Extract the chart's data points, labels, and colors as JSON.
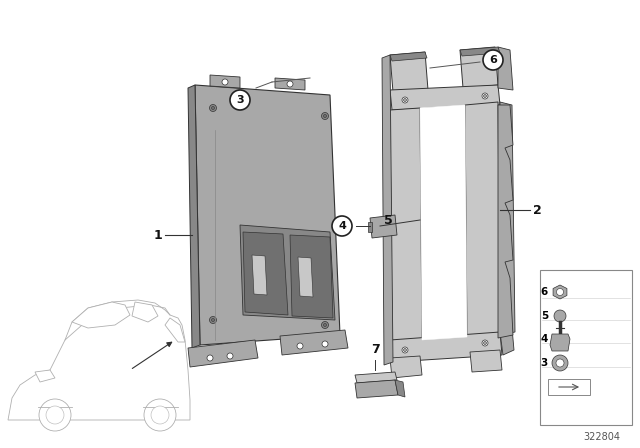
{
  "bg_color": "#ffffff",
  "part_number": "322804",
  "lc": "#333333",
  "gray_light": "#c8c8c8",
  "gray_mid": "#a8a8a8",
  "gray_dark": "#888888",
  "gray_darker": "#707070",
  "callout_bg": "#ffffff",
  "callout_edge": "#222222",
  "car_color": "#d8d8d8",
  "legend_bg": "#f5f5f5"
}
